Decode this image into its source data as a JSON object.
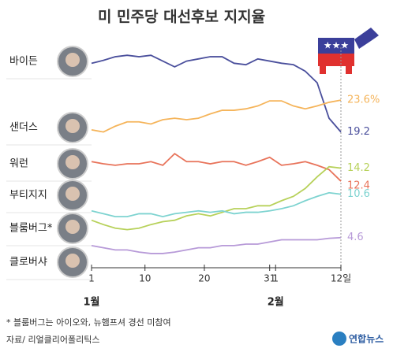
{
  "chart_data": {
    "type": "line",
    "title": "미 민주당 대선후보 지지율",
    "x": [
      1,
      3,
      5,
      7,
      9,
      11,
      13,
      15,
      17,
      19,
      21,
      23,
      25,
      27,
      29,
      31,
      33,
      35,
      37,
      39,
      41,
      43
    ],
    "xlim": [
      1,
      43
    ],
    "xticks": [
      1,
      10,
      20,
      31,
      {
        "value": 32,
        "label": "1"
      },
      {
        "value": 43,
        "label": "12일"
      }
    ],
    "months": [
      {
        "value": 1,
        "label": "1월"
      },
      {
        "value": 32,
        "label": "2월"
      }
    ],
    "ylim": [
      0,
      32
    ],
    "series": [
      {
        "name": "바이든",
        "color": "#4a4f9c",
        "values": [
          28.7,
          29.1,
          29.6,
          29.8,
          29.6,
          29.8,
          29.0,
          28.2,
          29.0,
          29.3,
          29.6,
          29.6,
          28.7,
          28.5,
          29.3,
          29.0,
          28.7,
          28.5,
          27.6,
          26.0,
          21.1,
          19.2
        ]
      },
      {
        "name": "샌더스",
        "color": "#f5b45a",
        "values": [
          19.5,
          19.2,
          20.0,
          20.6,
          20.6,
          20.3,
          20.9,
          21.1,
          20.9,
          21.1,
          21.7,
          22.2,
          22.2,
          22.4,
          22.8,
          23.5,
          23.5,
          22.8,
          22.4,
          22.8,
          23.3,
          23.6
        ],
        "value_labels": [
          null,
          null,
          null,
          null,
          null,
          null,
          null,
          null,
          null,
          null,
          null,
          null,
          null,
          null,
          null,
          null,
          null,
          null,
          null,
          null,
          null,
          "23.6%"
        ]
      },
      {
        "name": "워런",
        "color": "#e8735a",
        "values": [
          15.1,
          14.8,
          14.6,
          14.8,
          14.8,
          15.1,
          14.6,
          16.2,
          15.1,
          15.1,
          14.8,
          15.1,
          15.1,
          14.6,
          15.1,
          15.7,
          14.6,
          14.8,
          15.1,
          14.6,
          14.0,
          12.4
        ]
      },
      {
        "name": "부티지지",
        "color": "#b7d15a",
        "values": [
          7.0,
          6.4,
          5.9,
          5.7,
          5.9,
          6.4,
          6.8,
          7.0,
          7.6,
          7.9,
          7.6,
          8.1,
          8.6,
          8.6,
          9.0,
          9.0,
          9.7,
          10.3,
          11.4,
          13.0,
          14.4,
          14.2
        ]
      },
      {
        "name": "블룸버그*",
        "color": "#7dd3d0",
        "values": [
          8.3,
          7.9,
          7.5,
          7.5,
          7.9,
          7.9,
          7.5,
          7.9,
          8.1,
          8.3,
          8.1,
          8.3,
          7.9,
          8.1,
          8.1,
          8.3,
          8.6,
          9.0,
          9.7,
          10.3,
          10.8,
          10.6
        ]
      },
      {
        "name": "클로버샤",
        "color": "#b79ad8",
        "values": [
          3.5,
          3.2,
          2.9,
          2.9,
          2.6,
          2.4,
          2.4,
          2.6,
          2.9,
          3.2,
          3.2,
          3.5,
          3.5,
          3.7,
          3.7,
          4.0,
          4.3,
          4.3,
          4.3,
          4.3,
          4.5,
          4.6
        ]
      }
    ],
    "footnote": "* 블룸버그는 아이오와, 뉴햄프셔 경선 미참여",
    "source": "자료/ 리얼클리어폴리틱스",
    "logo": "연합뉴스"
  }
}
